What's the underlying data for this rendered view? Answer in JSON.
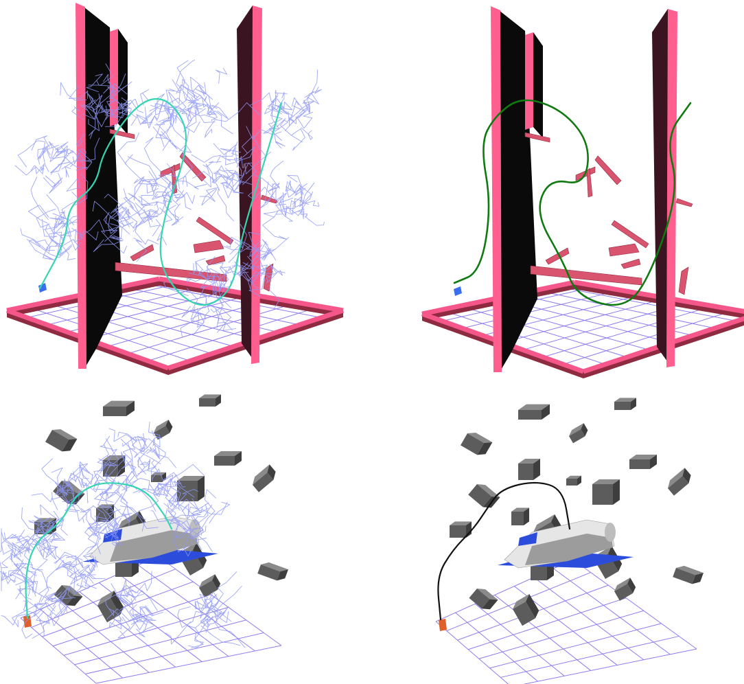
{
  "figure": {
    "panels": [
      {
        "id": "walls-tree",
        "scene": "walls-with-pink-bars",
        "shows": "exploration-tree-and-path"
      },
      {
        "id": "walls-path",
        "scene": "walls-with-pink-bars",
        "shows": "solution-path"
      },
      {
        "id": "shuttle-tree",
        "scene": "space-shuttle-among-boxes",
        "shows": "exploration-tree-and-path"
      },
      {
        "id": "shuttle-path",
        "scene": "space-shuttle-among-boxes",
        "shows": "solution-path"
      }
    ]
  },
  "colors": {
    "background": "#ffffff",
    "wall_frame": "#ff5f8f",
    "wall_face": "#0a0a0a",
    "wall_dark": "#3a1420",
    "bar_fill": "#d9546e",
    "bar_dark": "#8e2b40",
    "floor_frame": "#f5578a",
    "floor_grid": "#8f7bf0",
    "tree": "#8f98f5",
    "path_cyan": "#33d6b0",
    "path_green": "#0f7a0f",
    "path_black": "#111111",
    "box_top": "#8a8a8a",
    "box_side": "#3e3e3e",
    "box_front": "#5c5c5c",
    "robot_blue": "#3a6ef0",
    "robot_orange": "#e0602a",
    "shuttle_body": "#e6e6e6",
    "shuttle_shade": "#9c9c9c",
    "shuttle_wing": "#2c4ddc"
  }
}
